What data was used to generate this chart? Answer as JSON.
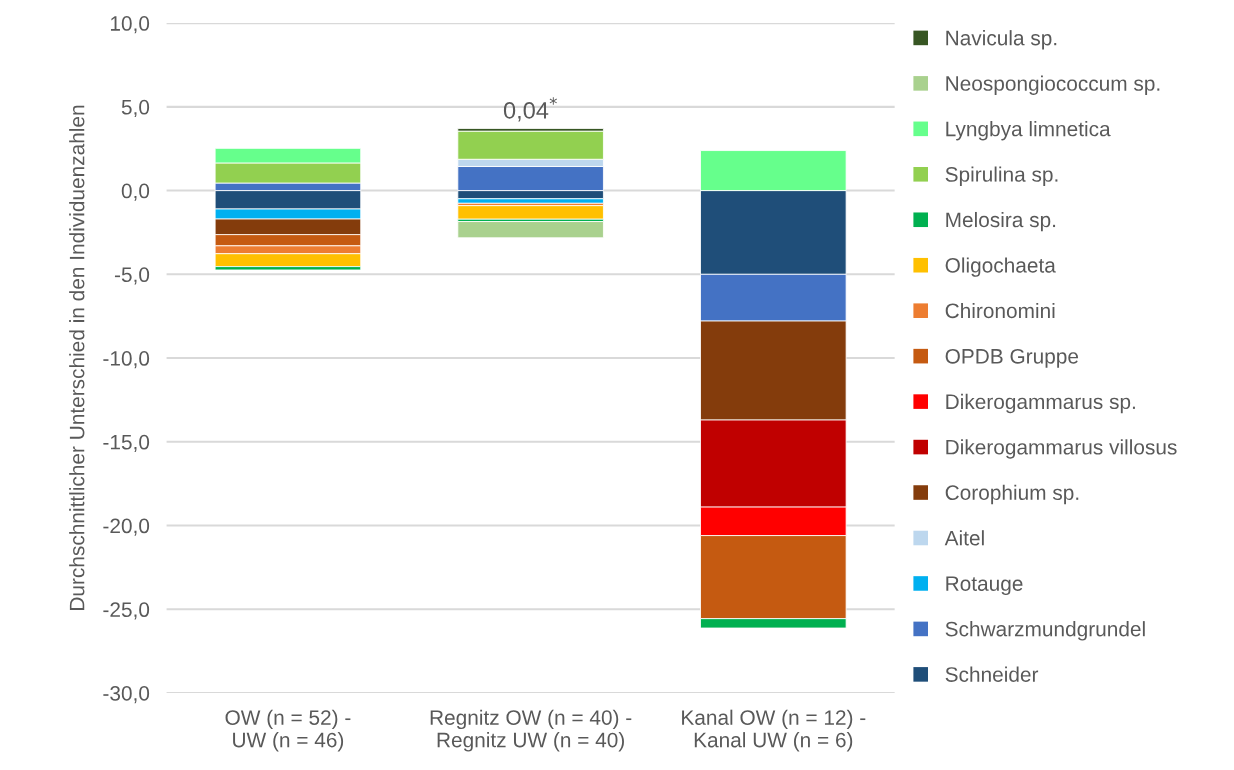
{
  "chart_data": {
    "type": "bar",
    "stacked": true,
    "ylabel": "Durchschnittlicher Unterschied in den Individuenzahlen",
    "categories": [
      "OW (n = 52) -\nUW (n = 46)",
      "Regnitz OW (n = 40) -\nRegnitz UW (n = 40)",
      "Kanal OW (n = 12) -\nKanal UW (n = 6)"
    ],
    "series": [
      {
        "name": "Schneider",
        "color": "#1f4e79",
        "values": [
          -1.1,
          -0.49,
          -5.0
        ]
      },
      {
        "name": "Schwarzmundgrundel",
        "color": "#4472c4",
        "values": [
          0.45,
          1.44,
          -2.79
        ]
      },
      {
        "name": "Rotauge",
        "color": "#00b0f0",
        "values": [
          -0.6,
          -0.27,
          null
        ]
      },
      {
        "name": "Aitel",
        "color": "#bdd7ee",
        "values": [
          null,
          0.43,
          null
        ]
      },
      {
        "name": "Corophium sp.",
        "color": "#843c0c",
        "values": [
          -0.93,
          null,
          -5.91
        ]
      },
      {
        "name": "Dikerogammarus villosus",
        "color": "#c00000",
        "values": [
          null,
          null,
          -5.2
        ]
      },
      {
        "name": "Dikerogammarus sp.",
        "color": "#ff0000",
        "values": [
          null,
          null,
          -1.7
        ]
      },
      {
        "name": "OPDB Gruppe",
        "color": "#c55a11",
        "values": [
          -0.67,
          null,
          -4.96
        ]
      },
      {
        "name": "Chironomini",
        "color": "#ed7d31",
        "values": [
          -0.47,
          -0.14,
          null
        ]
      },
      {
        "name": "Oligochaeta",
        "color": "#ffc000",
        "values": [
          -0.77,
          -0.81,
          null
        ]
      },
      {
        "name": "Melosira sp.",
        "color": "#00b050",
        "values": [
          -0.2,
          -0.14,
          -0.56
        ]
      },
      {
        "name": "Spirulina sp.",
        "color": "#92d050",
        "values": [
          1.2,
          1.68,
          null
        ]
      },
      {
        "name": "Lyngbya limnetica",
        "color": "#66ff8c",
        "values": [
          0.87,
          null,
          2.39
        ]
      },
      {
        "name": "Neospongiococcum sp.",
        "color": "#a9d18e",
        "values": [
          null,
          -0.97,
          null
        ]
      },
      {
        "name": "Navicula sp.",
        "color": "#375623",
        "values": [
          null,
          0.16,
          null
        ]
      }
    ],
    "ylim": [
      -30,
      10
    ],
    "yticks": [
      {
        "value": -30,
        "label": "-30,0"
      },
      {
        "value": -25,
        "label": "-25,0"
      },
      {
        "value": -20,
        "label": "-20,0"
      },
      {
        "value": -15,
        "label": "-15,0"
      },
      {
        "value": -10,
        "label": "-10,0"
      },
      {
        "value": -5,
        "label": "-5,0"
      },
      {
        "value": 0,
        "label": "0,0"
      },
      {
        "value": 5,
        "label": "5,0"
      },
      {
        "value": 10,
        "label": "10,0"
      }
    ],
    "grid": "y",
    "legend": "right",
    "annotations": [
      "0,04$^{*}$"
    ]
  }
}
